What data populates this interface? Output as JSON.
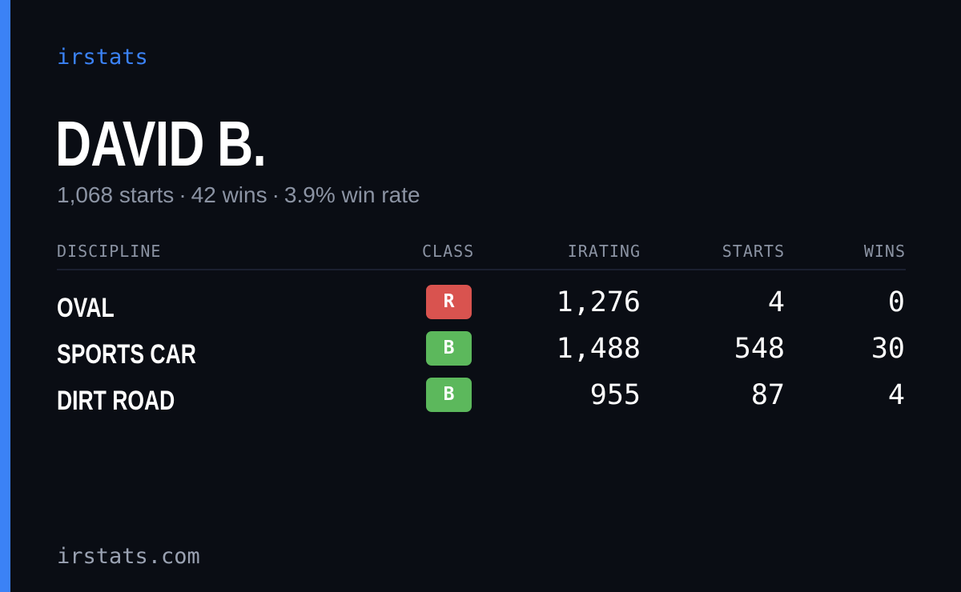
{
  "brand": "irstats",
  "player": {
    "name": "DAVID B.",
    "starts_text": "1,068 starts",
    "wins_text": "42 wins",
    "winrate_text": "3.9% win rate",
    "separator": "·"
  },
  "table": {
    "headers": {
      "discipline": "DISCIPLINE",
      "class": "CLASS",
      "irating": "IRATING",
      "starts": "STARTS",
      "wins": "WINS"
    },
    "rows": [
      {
        "discipline": "OVAL",
        "class": "R",
        "class_color": "#d9534f",
        "irating": "1,276",
        "starts": "4",
        "wins": "0"
      },
      {
        "discipline": "SPORTS CAR",
        "class": "B",
        "class_color": "#5cb85c",
        "irating": "1,488",
        "starts": "548",
        "wins": "30"
      },
      {
        "discipline": "DIRT ROAD",
        "class": "B",
        "class_color": "#5cb85c",
        "irating": "955",
        "starts": "87",
        "wins": "4"
      }
    ]
  },
  "footer": "irstats.com",
  "colors": {
    "background": "#0a0d14",
    "accent": "#3b82f6",
    "muted_text": "#8b93a3"
  }
}
